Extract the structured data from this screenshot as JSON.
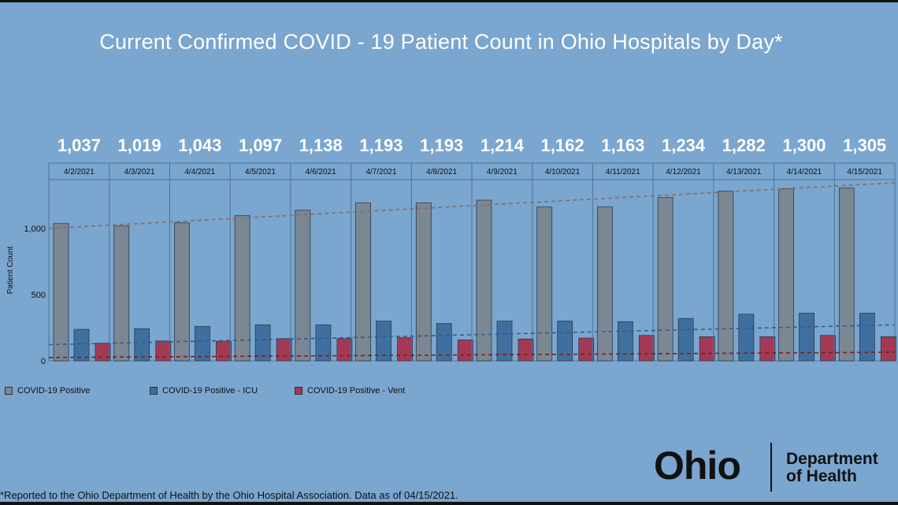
{
  "title": "Current Confirmed COVID - 19 Patient Count in Ohio Hospitals by Day*",
  "footnote": "*Reported to the Ohio Department of Health by the Ohio Hospital Association. Data as of 04/15/2021.",
  "logo": {
    "word": "Ohio",
    "line1": "Department",
    "line2": "of Health"
  },
  "legend": [
    {
      "label": "COVID-19 Positive",
      "color": "#7b8792"
    },
    {
      "label": "COVID-19 Positive - ICU",
      "color": "#3f6f9f"
    },
    {
      "label": "COVID-19 Positive - Vent",
      "color": "#a23a55"
    }
  ],
  "chart_data": {
    "type": "bar",
    "title": "Current Confirmed COVID - 19 Patient Count in Ohio Hospitals by Day*",
    "ylabel": "Patient Count",
    "ylim": [
      0,
      1350
    ],
    "yticks": [
      0,
      500,
      1000
    ],
    "ytick_labels": [
      "0",
      "500",
      "1,000"
    ],
    "categories": [
      "4/2/2021",
      "4/3/2021",
      "4/4/2021",
      "4/5/2021",
      "4/6/2021",
      "4/7/2021",
      "4/8/2021",
      "4/9/2021",
      "4/10/2021",
      "4/11/2021",
      "4/12/2021",
      "4/13/2021",
      "4/14/2021",
      "4/15/2021"
    ],
    "top_labels": [
      "1,037",
      "1,019",
      "1,043",
      "1,097",
      "1,138",
      "1,193",
      "1,193",
      "1,214",
      "1,162",
      "1,163",
      "1,234",
      "1,282",
      "1,300",
      "1,305"
    ],
    "series": [
      {
        "name": "COVID-19 Positive",
        "color": "#7b8792",
        "values": [
          1037,
          1019,
          1043,
          1097,
          1138,
          1193,
          1193,
          1214,
          1162,
          1163,
          1234,
          1282,
          1300,
          1305
        ]
      },
      {
        "name": "COVID-19 Positive - ICU",
        "color": "#3f6f9f",
        "values": [
          238,
          243,
          260,
          272,
          272,
          300,
          282,
          300,
          300,
          296,
          320,
          352,
          360,
          360
        ]
      },
      {
        "name": "COVID-19 Positive - Vent",
        "color": "#a23a55",
        "values": [
          133,
          150,
          148,
          168,
          168,
          175,
          158,
          165,
          172,
          192,
          182,
          182,
          192,
          182
        ]
      }
    ],
    "trendlines": [
      {
        "series": "COVID-19 Positive",
        "start": 1000,
        "end": 1345,
        "color": "#8a6b6b"
      },
      {
        "series": "COVID-19 Positive - ICU",
        "start": 122,
        "end": 272,
        "color": "#2f5f8f"
      },
      {
        "series": "COVID-19 Positive - Vent",
        "start": 25,
        "end": 65,
        "color": "#7a1f1f"
      }
    ],
    "grid": false,
    "legend_position": "bottom-left"
  }
}
